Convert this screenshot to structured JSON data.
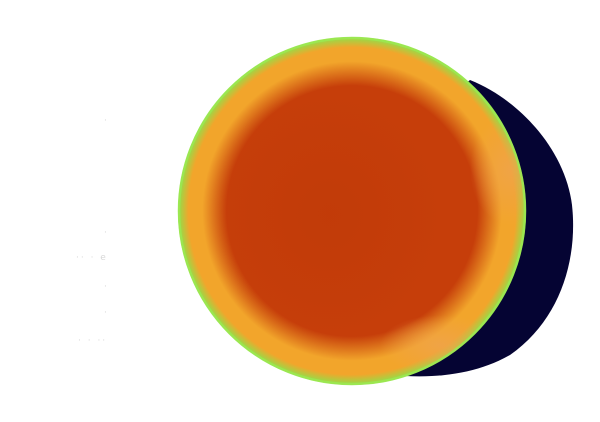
{
  "scene": {
    "colors": {
      "background": "#ffffff",
      "shadow": "#050433",
      "rim": "#8fe04a",
      "mid": "#f2a52b",
      "core": "#c63e0a",
      "core_dark": "#b93606"
    }
  },
  "faint_labels": [
    "·",
    "·",
    "·· · e",
    "·",
    "·",
    "· · ··"
  ]
}
